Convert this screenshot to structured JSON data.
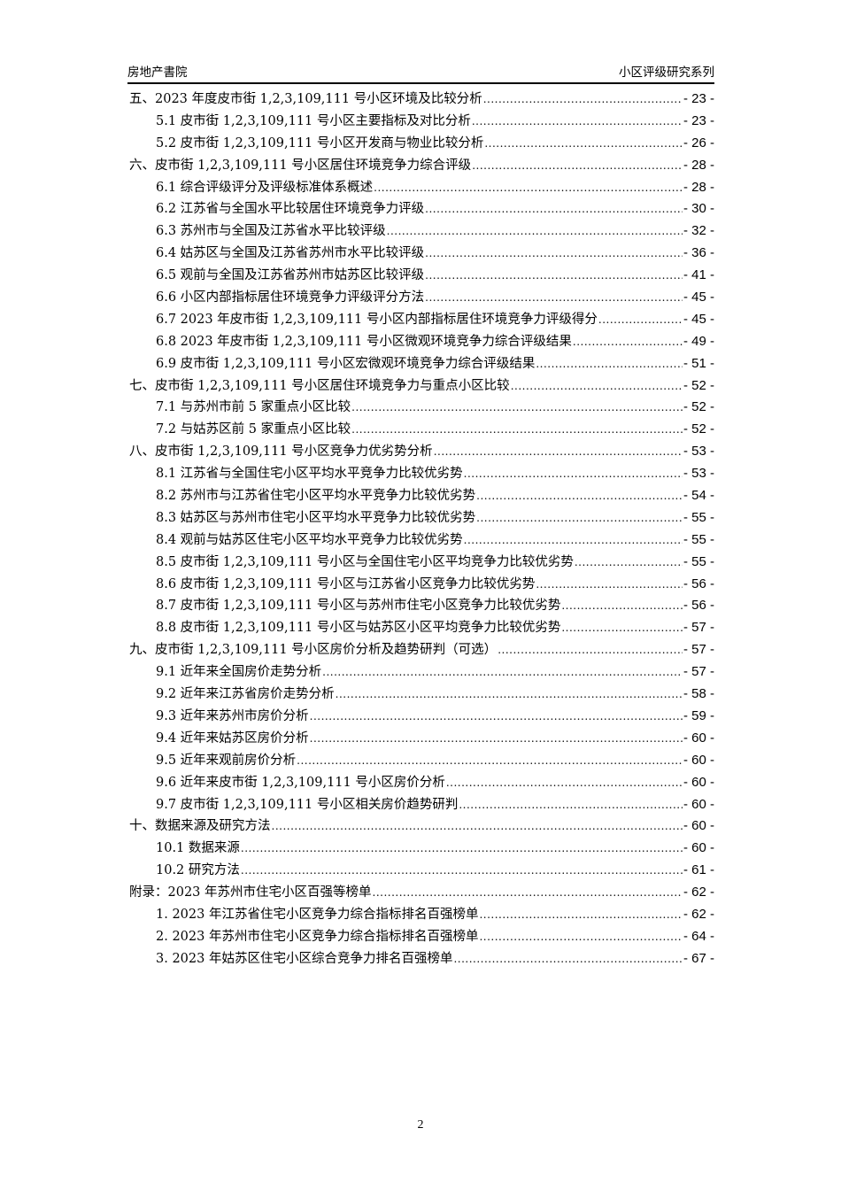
{
  "header": {
    "left": "房地产書院",
    "right": "小区评级研究系列"
  },
  "toc": [
    {
      "level": 1,
      "title": "五、2023 年度皮市街 1,2,3,109,111 号小区环境及比较分析",
      "page": "- 23 -"
    },
    {
      "level": 2,
      "title": "5.1  皮市街 1,2,3,109,111 号小区主要指标及对比分析",
      "page": "- 23 -"
    },
    {
      "level": 2,
      "title": "5.2  皮市街 1,2,3,109,111 号小区开发商与物业比较分析",
      "page": "- 26 -"
    },
    {
      "level": 1,
      "title": "六、皮市街 1,2,3,109,111 号小区居住环境竞争力综合评级",
      "page": "- 28 -"
    },
    {
      "level": 2,
      "title": "6.1  综合评级评分及评级标准体系概述",
      "page": "- 28 -"
    },
    {
      "level": 2,
      "title": "6.2  江苏省与全国水平比较居住环境竞争力评级",
      "page": "- 30 -"
    },
    {
      "level": 2,
      "title": "6.3  苏州市与全国及江苏省水平比较评级",
      "page": "- 32 -"
    },
    {
      "level": 2,
      "title": "6.4  姑苏区与全国及江苏省苏州市水平比较评级",
      "page": "- 36 -"
    },
    {
      "level": 2,
      "title": "6.5  观前与全国及江苏省苏州市姑苏区比较评级",
      "page": "- 41 -"
    },
    {
      "level": 2,
      "title": "6.6  小区内部指标居住环境竞争力评级评分方法",
      "page": "- 45 -"
    },
    {
      "level": 2,
      "title": "6.7 2023 年皮市街 1,2,3,109,111 号小区内部指标居住环境竞争力评级得分",
      "page": "- 45 -"
    },
    {
      "level": 2,
      "title": "6.8 2023 年皮市街 1,2,3,109,111 号小区微观环境竞争力综合评级结果",
      "page": "- 49 -"
    },
    {
      "level": 2,
      "title": "6.9  皮市街 1,2,3,109,111 号小区宏微观环境竞争力综合评级结果",
      "page": "- 51 -"
    },
    {
      "level": 1,
      "title": "七、皮市街 1,2,3,109,111 号小区居住环境竞争力与重点小区比较",
      "page": "- 52 -"
    },
    {
      "level": 2,
      "title": "7.1  与苏州市前 5 家重点小区比较",
      "page": "- 52 -"
    },
    {
      "level": 2,
      "title": "7.2  与姑苏区前 5 家重点小区比较",
      "page": "- 52 -"
    },
    {
      "level": 1,
      "title": "八、皮市街 1,2,3,109,111 号小区竞争力优劣势分析",
      "page": "- 53 -"
    },
    {
      "level": 2,
      "title": "8.1  江苏省与全国住宅小区平均水平竞争力比较优劣势",
      "page": "- 53 -"
    },
    {
      "level": 2,
      "title": "8.2  苏州市与江苏省住宅小区平均水平竞争力比较优劣势",
      "page": "- 54 -"
    },
    {
      "level": 2,
      "title": "8.3  姑苏区与苏州市住宅小区平均水平竞争力比较优劣势",
      "page": "- 55 -"
    },
    {
      "level": 2,
      "title": "8.4  观前与姑苏区住宅小区平均水平竞争力比较优劣势",
      "page": "- 55 -"
    },
    {
      "level": 2,
      "title": "8.5  皮市街 1,2,3,109,111 号小区与全国住宅小区平均竞争力比较优劣势",
      "page": "- 55 -"
    },
    {
      "level": 2,
      "title": "8.6  皮市街 1,2,3,109,111 号小区与江苏省小区竞争力比较优劣势",
      "page": "- 56 -"
    },
    {
      "level": 2,
      "title": "8.7  皮市街 1,2,3,109,111 号小区与苏州市住宅小区竞争力比较优劣势",
      "page": "- 56 -"
    },
    {
      "level": 2,
      "title": "8.8  皮市街 1,2,3,109,111 号小区与姑苏区小区平均竞争力比较优劣势",
      "page": "- 57 -"
    },
    {
      "level": 1,
      "title": "九、皮市街 1,2,3,109,111 号小区房价分析及趋势研判（可选）",
      "page": "- 57 -"
    },
    {
      "level": 2,
      "title": "9.1  近年来全国房价走势分析",
      "page": "- 57 -"
    },
    {
      "level": 2,
      "title": "9.2  近年来江苏省房价走势分析",
      "page": "- 58 -"
    },
    {
      "level": 2,
      "title": "9.3  近年来苏州市房价分析",
      "page": "- 59 -"
    },
    {
      "level": 2,
      "title": "9.4  近年来姑苏区房价分析",
      "page": "- 60 -"
    },
    {
      "level": 2,
      "title": "9.5  近年来观前房价分析",
      "page": "- 60 -"
    },
    {
      "level": 2,
      "title": "9.6  近年来皮市街 1,2,3,109,111 号小区房价分析",
      "page": "- 60 -"
    },
    {
      "level": 2,
      "title": "9.7  皮市街 1,2,3,109,111 号小区相关房价趋势研判",
      "page": "- 60 -"
    },
    {
      "level": 1,
      "title": "十、数据来源及研究方法",
      "page": "- 60 -"
    },
    {
      "level": 2,
      "title": "10.1  数据来源",
      "page": "- 60 -"
    },
    {
      "level": 2,
      "title": "10.2  研究方法",
      "page": "- 61 -"
    },
    {
      "level": 1,
      "title": "附录：2023 年苏州市住宅小区百强等榜单",
      "page": "- 62 -"
    },
    {
      "level": 2,
      "title": "1.  2023 年江苏省住宅小区竞争力综合指标排名百强榜单",
      "page": "- 62 -"
    },
    {
      "level": 2,
      "title": "2.  2023 年苏州市住宅小区竞争力综合指标排名百强榜单",
      "page": "- 64 -"
    },
    {
      "level": 2,
      "title": "3.  2023 年姑苏区住宅小区综合竞争力排名百强榜单",
      "page": "- 67 -"
    }
  ],
  "footer": {
    "page_number": "2"
  }
}
